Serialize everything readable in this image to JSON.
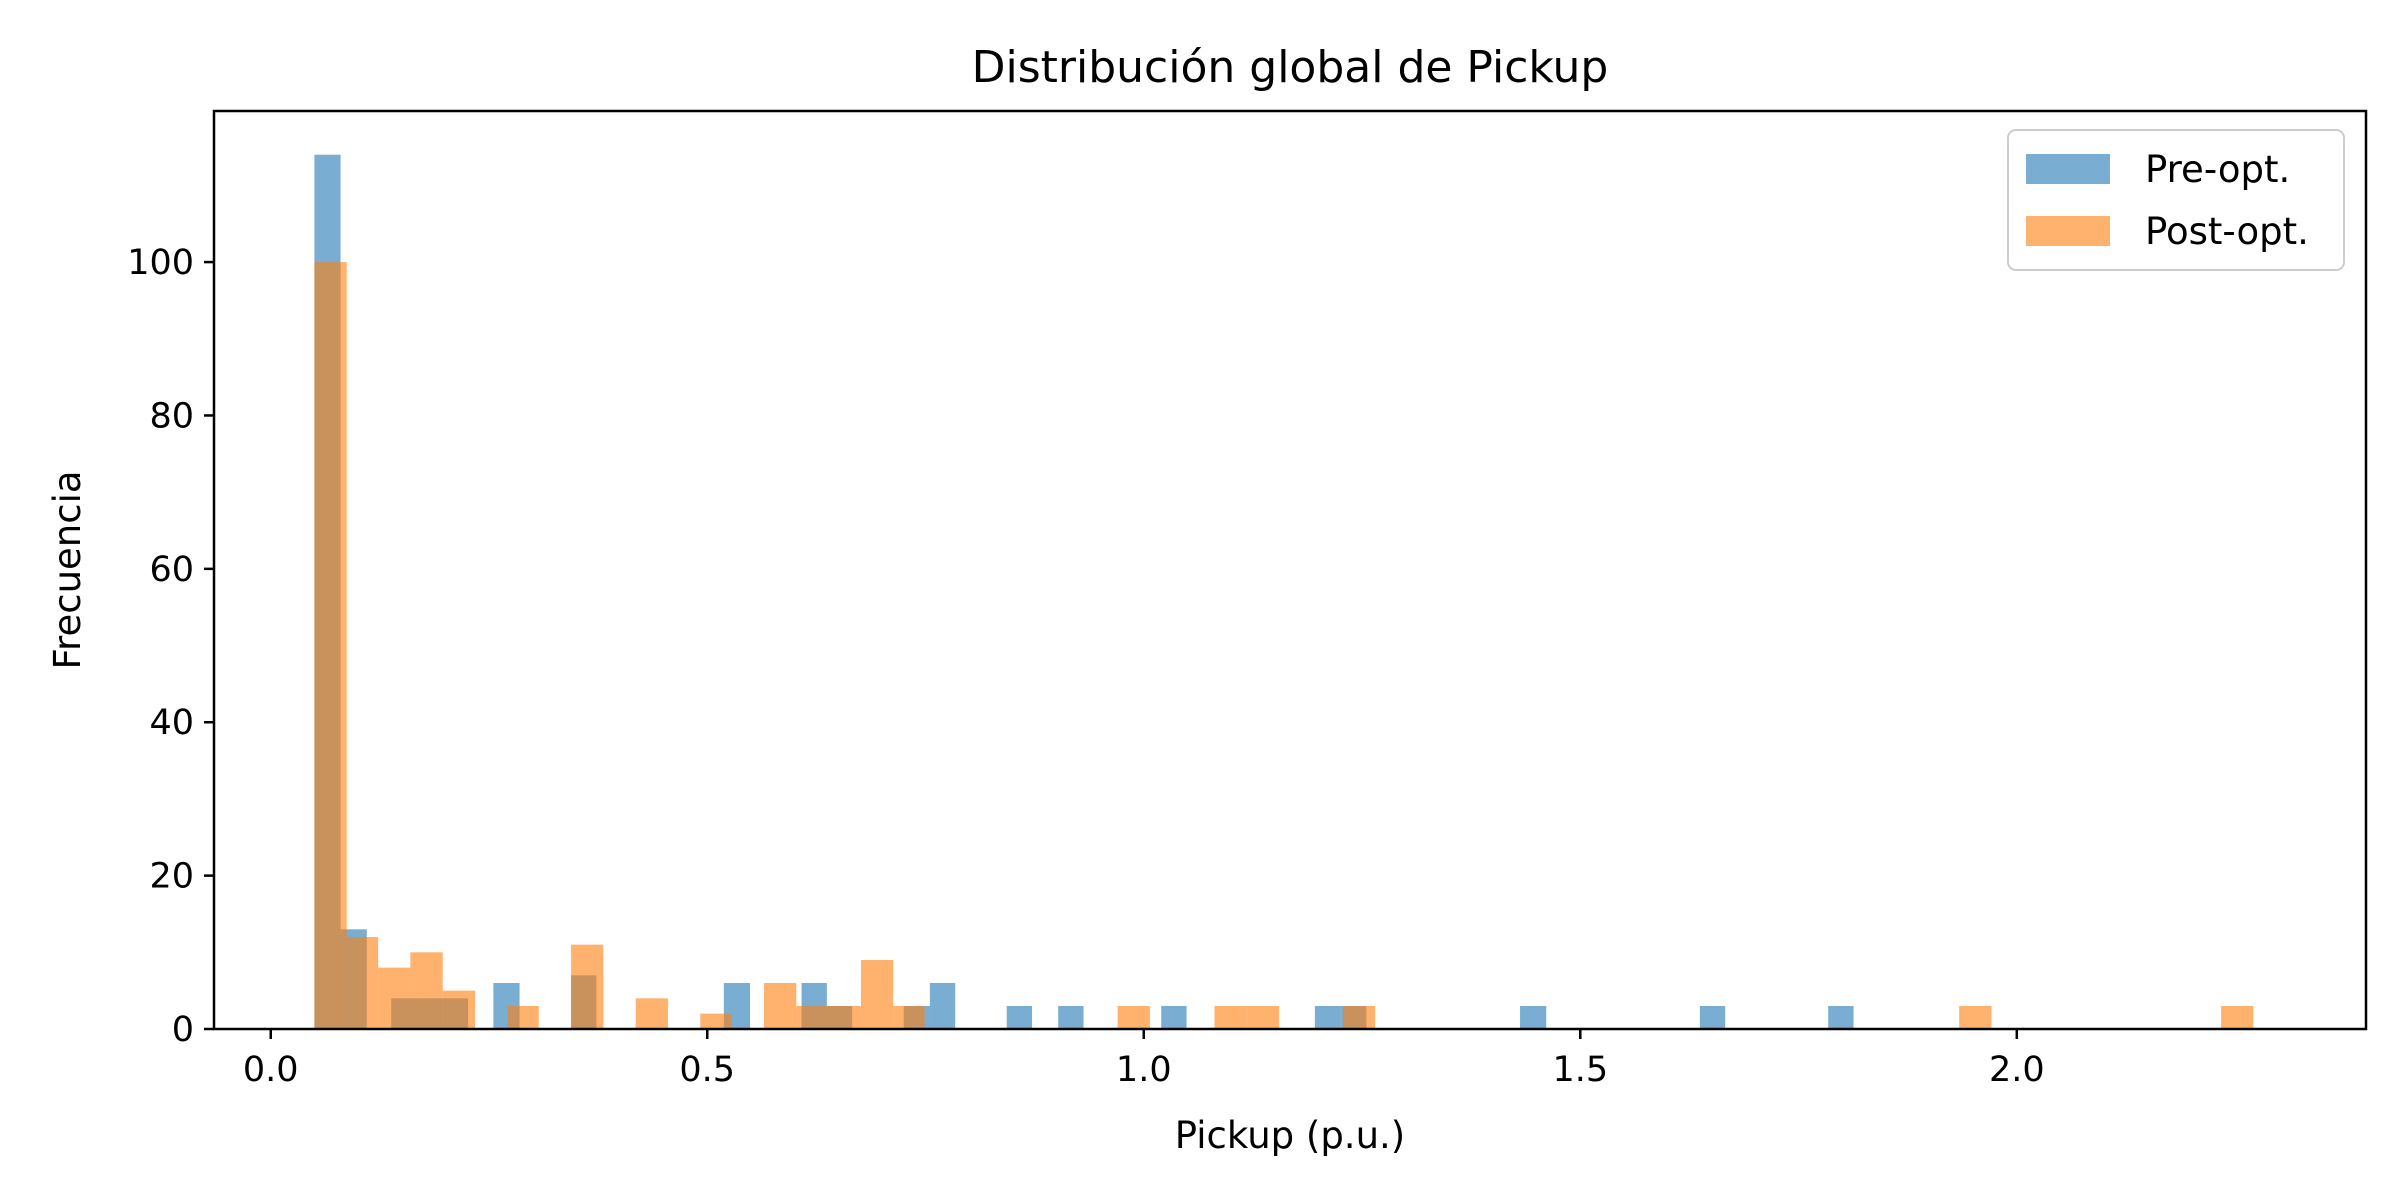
{
  "chart_data": {
    "type": "bar",
    "title": "Distribución global de Pickup",
    "xlabel": "Pickup (p.u.)",
    "ylabel": "Frecuencia",
    "xlim": [
      -0.065,
      2.4
    ],
    "ylim": [
      0,
      119.7
    ],
    "xticks": [
      0.0,
      0.5,
      1.0,
      1.5,
      2.0
    ],
    "xtick_labels": [
      "0.0",
      "0.5",
      "1.0",
      "1.5",
      "2.0"
    ],
    "yticks": [
      0,
      20,
      40,
      60,
      80,
      100
    ],
    "ytick_labels": [
      "0",
      "20",
      "40",
      "60",
      "80",
      "100"
    ],
    "grid": false,
    "legend_position": "top-right",
    "series": [
      {
        "name": "Pre-opt.",
        "color": "#1f77b4",
        "opacity": 0.6,
        "bins": [
          {
            "x0": 0.05,
            "x1": 0.08,
            "count": 114
          },
          {
            "x0": 0.08,
            "x1": 0.11,
            "count": 13
          },
          {
            "x0": 0.138,
            "x1": 0.168,
            "count": 4
          },
          {
            "x0": 0.168,
            "x1": 0.197,
            "count": 4
          },
          {
            "x0": 0.197,
            "x1": 0.226,
            "count": 4
          },
          {
            "x0": 0.255,
            "x1": 0.285,
            "count": 6
          },
          {
            "x0": 0.344,
            "x1": 0.373,
            "count": 7
          },
          {
            "x0": 0.519,
            "x1": 0.549,
            "count": 6
          },
          {
            "x0": 0.608,
            "x1": 0.637,
            "count": 6
          },
          {
            "x0": 0.637,
            "x1": 0.666,
            "count": 3
          },
          {
            "x0": 0.725,
            "x1": 0.755,
            "count": 3
          },
          {
            "x0": 0.755,
            "x1": 0.784,
            "count": 6
          },
          {
            "x0": 0.843,
            "x1": 0.872,
            "count": 3
          },
          {
            "x0": 0.902,
            "x1": 0.931,
            "count": 3
          },
          {
            "x0": 1.02,
            "x1": 1.049,
            "count": 3
          },
          {
            "x0": 1.196,
            "x1": 1.225,
            "count": 3
          },
          {
            "x0": 1.225,
            "x1": 1.255,
            "count": 3
          },
          {
            "x0": 1.431,
            "x1": 1.461,
            "count": 3
          },
          {
            "x0": 1.637,
            "x1": 1.666,
            "count": 3
          },
          {
            "x0": 1.784,
            "x1": 1.813,
            "count": 3
          }
        ]
      },
      {
        "name": "Post-opt.",
        "color": "#ff7f0e",
        "opacity": 0.6,
        "bins": [
          {
            "x0": 0.05,
            "x1": 0.087,
            "count": 100
          },
          {
            "x0": 0.087,
            "x1": 0.123,
            "count": 12
          },
          {
            "x0": 0.123,
            "x1": 0.16,
            "count": 8
          },
          {
            "x0": 0.16,
            "x1": 0.197,
            "count": 10
          },
          {
            "x0": 0.197,
            "x1": 0.234,
            "count": 5
          },
          {
            "x0": 0.271,
            "x1": 0.307,
            "count": 3
          },
          {
            "x0": 0.344,
            "x1": 0.381,
            "count": 11
          },
          {
            "x0": 0.418,
            "x1": 0.455,
            "count": 4
          },
          {
            "x0": 0.492,
            "x1": 0.528,
            "count": 2
          },
          {
            "x0": 0.565,
            "x1": 0.602,
            "count": 6
          },
          {
            "x0": 0.602,
            "x1": 0.639,
            "count": 3
          },
          {
            "x0": 0.639,
            "x1": 0.676,
            "count": 3
          },
          {
            "x0": 0.676,
            "x1": 0.713,
            "count": 9
          },
          {
            "x0": 0.713,
            "x1": 0.749,
            "count": 3
          },
          {
            "x0": 0.97,
            "x1": 1.007,
            "count": 3
          },
          {
            "x0": 1.081,
            "x1": 1.118,
            "count": 3
          },
          {
            "x0": 1.118,
            "x1": 1.155,
            "count": 3
          },
          {
            "x0": 1.228,
            "x1": 1.265,
            "count": 3
          },
          {
            "x0": 1.934,
            "x1": 1.971,
            "count": 3
          },
          {
            "x0": 2.234,
            "x1": 2.271,
            "count": 3
          }
        ]
      }
    ]
  }
}
